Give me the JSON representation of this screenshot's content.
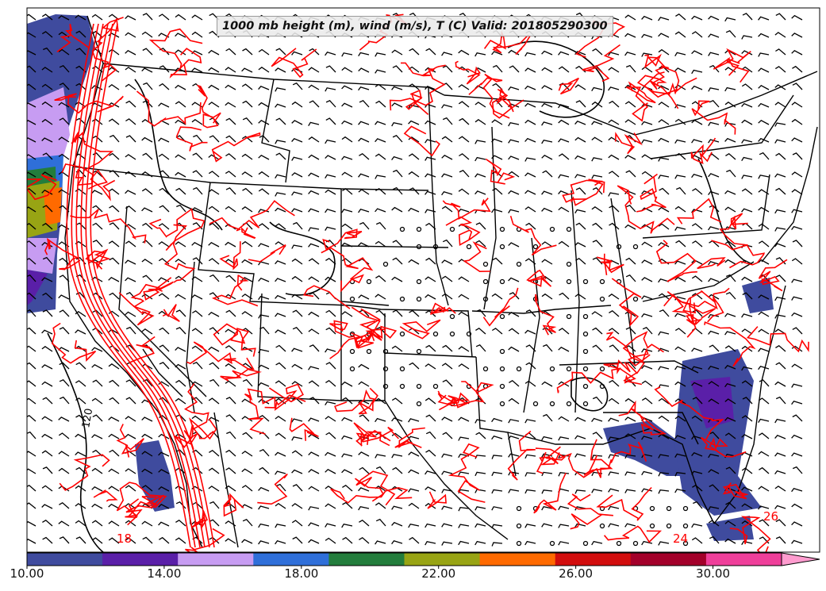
{
  "title": "1000 mb height (m), wind (m/s), T (C) Valid: 201805290300",
  "colorbar": {
    "tick_labels": [
      "10.00",
      "14.00",
      "18.00",
      "22.00",
      "26.00",
      "30.00"
    ],
    "colors": [
      "#3f4b9e",
      "#5a1fa8",
      "#c79cf2",
      "#2f6fd9",
      "#237d3c",
      "#98a414",
      "#ff6a00",
      "#d20d0d",
      "#a3002a",
      "#ef3f9a",
      "#ff9ccf"
    ],
    "min": 10,
    "max": 32,
    "step": 2,
    "extend": "max"
  },
  "contour_labels": {
    "temperature_color": "#ff0000",
    "temperature_examples": [
      "18",
      "24",
      "26"
    ],
    "height_color": "#000000",
    "height_examples": [
      "120"
    ]
  },
  "map": {
    "projection": "Lambert Conformal",
    "region": "Continental United States",
    "features": [
      "state borders",
      "coastlines",
      "wind barbs",
      "height contours",
      "temperature contours",
      "wind speed shading"
    ]
  }
}
